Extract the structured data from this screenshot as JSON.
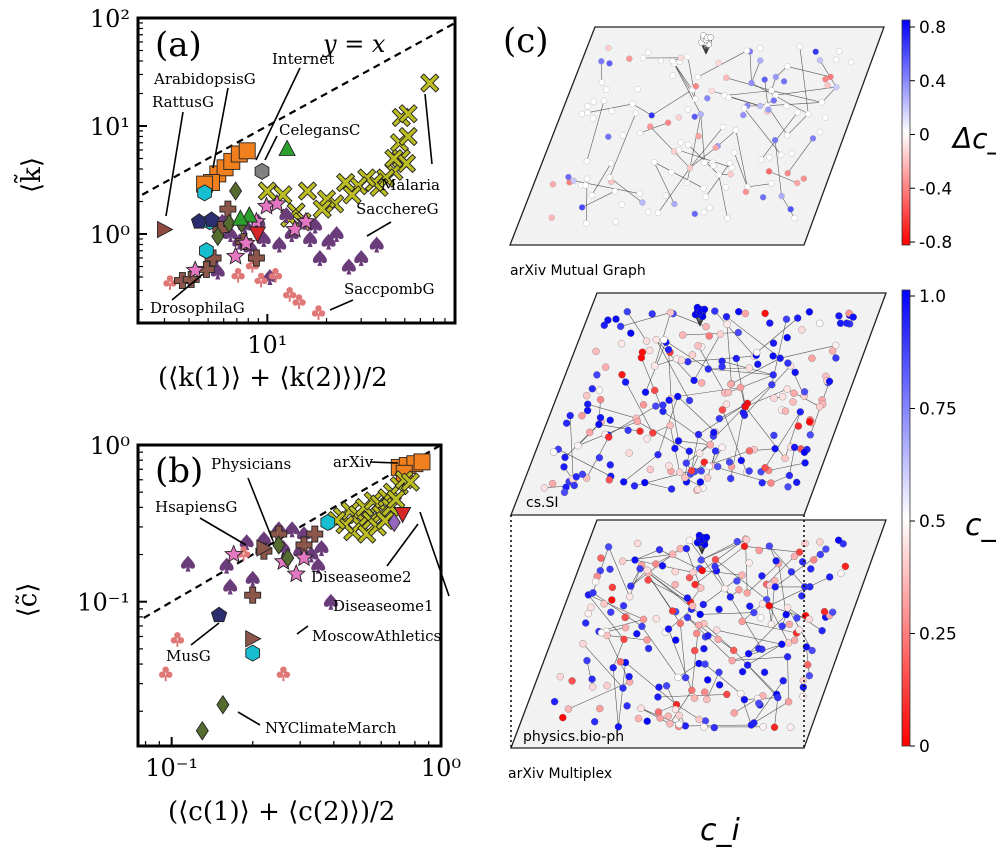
{
  "figure": {
    "panel_labels": {
      "a": "(a)",
      "b": "(b)",
      "c": "(c)"
    },
    "colorbar_colors": {
      "blue": "#0000ff",
      "white": "#ffffff",
      "red": "#ff0000"
    }
  },
  "chart_data": [
    {
      "id": "a",
      "type": "scatter",
      "title": "(a)",
      "xscale": "log",
      "yscale": "log",
      "xlim": [
        2.2,
        90
      ],
      "ylim": [
        0.15,
        100
      ],
      "xlabel": "(⟨k(1)⟩ + ⟨k(2)⟩)/2",
      "ylabel": "⟨k̃⟩",
      "yticks": [
        {
          "value": 1,
          "label": "10⁰"
        },
        {
          "value": 10,
          "label": "10¹"
        },
        {
          "value": 100,
          "label": "10²"
        }
      ],
      "xticks": [
        {
          "value": 10,
          "label": "10¹"
        }
      ],
      "reference_line": {
        "label": "y = x"
      },
      "series": [
        {
          "name": "squares",
          "marker": "square",
          "color": "#f07f1e",
          "points": [
            [
              5.6,
              3.6
            ],
            [
              6.1,
              4.1
            ],
            [
              6.6,
              4.7
            ],
            [
              7.2,
              5.5
            ],
            [
              7.9,
              5.9
            ],
            [
              5.2,
              3.0
            ],
            [
              4.8,
              2.9
            ]
          ]
        },
        {
          "name": "crosses",
          "marker": "x",
          "color": "#bcbd22",
          "points": [
            [
              67,
              25
            ],
            [
              48,
              12
            ],
            [
              52,
              13
            ],
            [
              47,
              7
            ],
            [
              52,
              8
            ],
            [
              48,
              5
            ],
            [
              51,
              4.5
            ],
            [
              44,
              3.8
            ],
            [
              40,
              3.3
            ],
            [
              37,
              2.7
            ],
            [
              35,
              3.0
            ],
            [
              32,
              3.3
            ],
            [
              29,
              2.8
            ],
            [
              27,
              2.3
            ],
            [
              25,
              3.0
            ],
            [
              22,
              1.9
            ],
            [
              20,
              2.1
            ],
            [
              19,
              1.7
            ],
            [
              16,
              2.5
            ],
            [
              14,
              1.6
            ],
            [
              13,
              1.4
            ],
            [
              15,
              1.3
            ],
            [
              12,
              2.3
            ],
            [
              10,
              2.5
            ],
            [
              44,
              5
            ]
          ]
        },
        {
          "name": "spades",
          "marker": "spade",
          "color": "#6a3d7a",
          "points": [
            [
              5.9,
              1.3
            ],
            [
              6.5,
              1.0
            ],
            [
              7.2,
              0.85
            ],
            [
              7.7,
              1.2
            ],
            [
              8.2,
              0.75
            ],
            [
              9.0,
              1.3
            ],
            [
              9.6,
              0.9
            ],
            [
              10.3,
              0.4
            ],
            [
              11.5,
              0.8
            ],
            [
              12.5,
              1.5
            ],
            [
              13.3,
              1.0
            ],
            [
              15.5,
              1.3
            ],
            [
              16.5,
              0.9
            ],
            [
              17.5,
              1.2
            ],
            [
              18.5,
              0.6
            ],
            [
              20.5,
              0.85
            ],
            [
              22.5,
              1.0
            ],
            [
              26,
              0.5
            ],
            [
              30,
              0.6
            ],
            [
              36,
              0.8
            ],
            [
              5.2,
              0.58
            ],
            [
              5.6,
              0.45
            ]
          ]
        },
        {
          "name": "clubs",
          "marker": "club",
          "color": "#e07777",
          "points": [
            [
              3.2,
              0.36
            ],
            [
              7.1,
              0.42
            ],
            [
              8.4,
              0.52
            ],
            [
              9.3,
              0.38
            ],
            [
              11.0,
              0.42
            ],
            [
              13.0,
              0.28
            ],
            [
              14.5,
              0.24
            ],
            [
              18.2,
              0.19
            ]
          ]
        },
        {
          "name": "plus",
          "marker": "plus",
          "color": "#8c564b",
          "points": [
            [
              3.7,
              0.37
            ],
            [
              4.1,
              0.38
            ],
            [
              4.9,
              0.47
            ],
            [
              5.3,
              0.6
            ],
            [
              5.8,
              1.1
            ],
            [
              6.3,
              1.7
            ],
            [
              7.6,
              0.85
            ],
            [
              8.8,
              0.6
            ]
          ]
        },
        {
          "name": "stars",
          "marker": "star",
          "color": "#e377c2",
          "points": [
            [
              4.3,
              0.46
            ],
            [
              6.9,
              0.62
            ],
            [
              7.8,
              0.82
            ],
            [
              8.8,
              1.3
            ],
            [
              9.9,
              1.8
            ],
            [
              11.2,
              1.9
            ],
            [
              13.8,
              1.1
            ],
            [
              15.7,
              1.3
            ]
          ]
        },
        {
          "name": "hexagons",
          "marker": "hexagon",
          "color": "#17becf",
          "points": [
            [
              4.8,
              2.4
            ],
            [
              5.1,
              1.3
            ],
            [
              4.9,
              0.7
            ]
          ]
        },
        {
          "name": "diamonds",
          "marker": "diamond",
          "color": "#556b2f",
          "points": [
            [
              5.6,
              0.95
            ],
            [
              6.4,
              1.25
            ],
            [
              7.4,
              1.25
            ],
            [
              6.9,
              2.5
            ]
          ]
        },
        {
          "name": "pentagons",
          "marker": "pentagon",
          "color": "#2b2d6e",
          "points": [
            [
              4.5,
              1.3
            ],
            [
              5.2,
              1.35
            ]
          ]
        },
        {
          "name": "tri_up",
          "marker": "triangle-up",
          "color": "#2ca02c",
          "points": [
            [
              12.6,
              6.2
            ],
            [
              8.1,
              1.5
            ],
            [
              7.3,
              1.4
            ]
          ]
        },
        {
          "name": "tri_down",
          "marker": "triangle-down",
          "color": "#d62728",
          "points": [
            [
              8.9,
              1.0
            ]
          ]
        },
        {
          "name": "tri_right",
          "marker": "triangle-right",
          "color": "#8c4b3e",
          "points": [
            [
              3.0,
              1.1
            ]
          ]
        },
        {
          "name": "grey_hex",
          "marker": "hexagon",
          "color": "#808080",
          "points": [
            [
              9.4,
              3.8
            ]
          ]
        }
      ],
      "annotations": [
        {
          "text": "ArabidopsisG"
        },
        {
          "text": "RattusG"
        },
        {
          "text": "Internet"
        },
        {
          "text": "CelegansC"
        },
        {
          "text": "Malaria"
        },
        {
          "text": "SacchereG"
        },
        {
          "text": "DrosophilaG"
        },
        {
          "text": "SaccpombG"
        }
      ]
    },
    {
      "id": "b",
      "type": "scatter",
      "title": "(b)",
      "xscale": "log",
      "yscale": "log",
      "xlim": [
        0.075,
        1.0
      ],
      "ylim": [
        0.012,
        1.0
      ],
      "xlabel": "(⟨c(1)⟩ + ⟨c(2)⟩)/2",
      "ylabel": "⟨c̃⟩",
      "yticks": [
        {
          "value": 0.1,
          "label": "10⁻¹"
        },
        {
          "value": 1,
          "label": "10⁰"
        }
      ],
      "xticks": [
        {
          "value": 0.1,
          "label": "10⁻¹"
        },
        {
          "value": 1,
          "label": "10⁰"
        }
      ],
      "reference_line": {
        "label": ""
      },
      "series": [
        {
          "name": "squares",
          "marker": "square",
          "color": "#f07f1e",
          "points": [
            [
              0.7,
              0.72
            ],
            [
              0.75,
              0.74
            ],
            [
              0.8,
              0.76
            ],
            [
              0.85,
              0.78
            ],
            [
              0.73,
              0.66
            ]
          ]
        },
        {
          "name": "crosses",
          "marker": "x",
          "color": "#bcbd22",
          "points": [
            [
              0.43,
              0.35
            ],
            [
              0.46,
              0.38
            ],
            [
              0.49,
              0.36
            ],
            [
              0.52,
              0.4
            ],
            [
              0.56,
              0.44
            ],
            [
              0.59,
              0.42
            ],
            [
              0.63,
              0.46
            ],
            [
              0.66,
              0.5
            ],
            [
              0.7,
              0.55
            ],
            [
              0.73,
              0.6
            ],
            [
              0.77,
              0.58
            ],
            [
              0.5,
              0.31
            ],
            [
              0.55,
              0.33
            ],
            [
              0.6,
              0.36
            ],
            [
              0.65,
              0.4
            ],
            [
              0.68,
              0.45
            ],
            [
              0.47,
              0.28
            ],
            [
              0.53,
              0.27
            ],
            [
              0.58,
              0.3
            ],
            [
              0.62,
              0.33
            ],
            [
              0.44,
              0.31
            ],
            [
              0.41,
              0.33
            ]
          ]
        },
        {
          "name": "spades",
          "marker": "spade",
          "color": "#6a3d7a",
          "points": [
            [
              0.115,
              0.175
            ],
            [
              0.16,
              0.17
            ],
            [
              0.19,
              0.24
            ],
            [
              0.22,
              0.25
            ],
            [
              0.25,
              0.29
            ],
            [
              0.28,
              0.29
            ],
            [
              0.31,
              0.27
            ],
            [
              0.33,
              0.2
            ],
            [
              0.36,
              0.22
            ],
            [
              0.26,
              0.22
            ],
            [
              0.3,
              0.21
            ],
            [
              0.39,
              0.1
            ],
            [
              0.35,
              0.17
            ],
            [
              0.165,
              0.125
            ],
            [
              0.2,
              0.14
            ]
          ]
        },
        {
          "name": "clubs",
          "marker": "club",
          "color": "#e07777",
          "points": [
            [
              0.105,
              0.058
            ],
            [
              0.095,
              0.035
            ],
            [
              0.185,
              0.205
            ],
            [
              0.26,
              0.035
            ]
          ]
        },
        {
          "name": "plus",
          "marker": "plus",
          "color": "#8c564b",
          "points": [
            [
              0.22,
              0.21
            ],
            [
              0.25,
              0.27
            ],
            [
              0.31,
              0.23
            ],
            [
              0.34,
              0.27
            ],
            [
              0.2,
              0.11
            ]
          ]
        },
        {
          "name": "stars",
          "marker": "star",
          "color": "#e377c2",
          "points": [
            [
              0.17,
              0.2
            ],
            [
              0.26,
              0.18
            ],
            [
              0.29,
              0.15
            ],
            [
              0.31,
              0.19
            ]
          ]
        },
        {
          "name": "hexagons",
          "marker": "hexagon",
          "color": "#17becf",
          "points": [
            [
              0.38,
              0.32
            ],
            [
              0.2,
              0.047
            ]
          ]
        },
        {
          "name": "diamonds",
          "marker": "diamond",
          "color": "#556b2f",
          "points": [
            [
              0.25,
              0.23
            ],
            [
              0.155,
              0.022
            ],
            [
              0.13,
              0.015
            ],
            [
              0.27,
              0.19
            ]
          ]
        },
        {
          "name": "pentagons",
          "marker": "pentagon",
          "color": "#2b2d6e",
          "points": [
            [
              0.15,
              0.082
            ]
          ]
        },
        {
          "name": "purple_diamond",
          "marker": "diamond",
          "color": "#9467bd",
          "points": [
            [
              0.67,
              0.32
            ]
          ]
        },
        {
          "name": "tri_right",
          "marker": "triangle-right",
          "color": "#8c564b",
          "points": [
            [
              0.2,
              0.058
            ],
            [
              0.22,
              0.22
            ]
          ]
        },
        {
          "name": "tri_down",
          "marker": "triangle-down",
          "color": "#d62728",
          "points": [
            [
              0.72,
              0.36
            ]
          ]
        }
      ],
      "annotations": [
        {
          "text": "arXiv"
        },
        {
          "text": "Physicians"
        },
        {
          "text": "HsapiensG"
        },
        {
          "text": "Diseaseome2"
        },
        {
          "text": "Diseaseome1"
        },
        {
          "text": "MoscowAthletics"
        },
        {
          "text": "MusG"
        },
        {
          "text": "NYClimateMarch"
        }
      ]
    },
    {
      "id": "c",
      "type": "network",
      "title": "(c)",
      "layers": [
        {
          "name": "arXiv Mutual Graph",
          "coloring": "Δc_i"
        },
        {
          "name": "cs.SI",
          "coloring": "c_i"
        },
        {
          "name": "physics.bio-ph",
          "coloring": "c_i"
        }
      ],
      "multiplex_caption": "arXiv Multiplex",
      "bottom_label": "c_i",
      "colorbars": [
        {
          "label": "Δc_i",
          "range": [
            -0.8,
            0.8
          ],
          "tick_labels": [
            "0.8",
            "0.4",
            "0",
            "-0.4",
            "-0.8"
          ]
        },
        {
          "label": "c_i",
          "range": [
            0,
            1.0
          ],
          "tick_labels": [
            "1.0",
            "0.75",
            "0.5",
            "0.25",
            "0"
          ]
        }
      ]
    }
  ]
}
